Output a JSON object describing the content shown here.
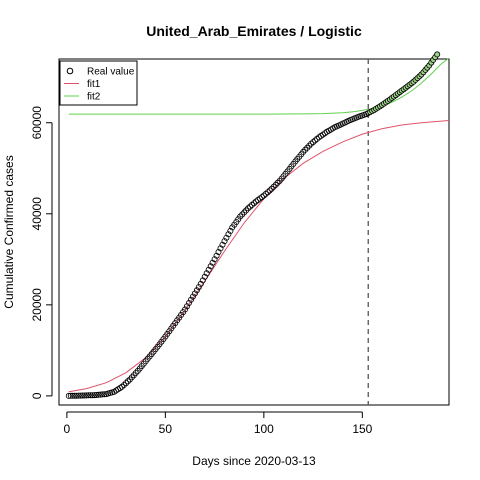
{
  "chart_data": {
    "type": "scatter",
    "title": "United_Arab_Emirates / Logistic",
    "xlabel": "Days since 2020-03-13",
    "ylabel": "Cumulative Confirmed cases",
    "xlim": [
      -4,
      194
    ],
    "ylim": [
      -2000,
      74000
    ],
    "x_ticks": [
      0,
      50,
      100,
      150
    ],
    "y_ticks": [
      0,
      20000,
      40000,
      60000
    ],
    "vertical_line": {
      "x": 153,
      "style": "dashed",
      "color": "#555555"
    },
    "legend": {
      "position": "top-left",
      "entries": [
        {
          "label": "Real value",
          "symbol": "circle",
          "color": "#000000"
        },
        {
          "label": "fit1",
          "symbol": "line",
          "color": "#DF536B"
        },
        {
          "label": "fit2",
          "symbol": "line",
          "color": "#61D04F"
        }
      ]
    },
    "series": [
      {
        "name": "Real value",
        "kind": "points",
        "color": "#000000",
        "fill_after_x": 153,
        "fill_color": "#9ed28a",
        "x": [
          1,
          5,
          10,
          15,
          20,
          24,
          28,
          32,
          36,
          40,
          44,
          48,
          52,
          56,
          60,
          64,
          68,
          72,
          76,
          80,
          84,
          88,
          92,
          96,
          100,
          104,
          108,
          112,
          116,
          120,
          124,
          128,
          132,
          136,
          140,
          144,
          148,
          152,
          156,
          160,
          164,
          168,
          172,
          176,
          180,
          184,
          188
        ],
        "y": [
          0,
          50,
          100,
          200,
          400,
          900,
          2000,
          3600,
          5500,
          7600,
          9700,
          11900,
          14200,
          16600,
          19000,
          21800,
          24600,
          27700,
          30800,
          34000,
          37000,
          39400,
          41200,
          42700,
          44000,
          45500,
          47200,
          49300,
          51500,
          53600,
          55400,
          56800,
          58000,
          59000,
          59800,
          60600,
          61300,
          61900,
          62800,
          63900,
          65100,
          66400,
          67700,
          69000,
          70600,
          72600,
          75000
        ]
      },
      {
        "name": "fit1",
        "kind": "line",
        "color": "#DF536B",
        "x": [
          1,
          10,
          20,
          30,
          40,
          50,
          60,
          70,
          80,
          90,
          100,
          110,
          120,
          130,
          140,
          150,
          160,
          170,
          180,
          194
        ],
        "y": [
          900,
          1600,
          2900,
          5100,
          8400,
          13000,
          18800,
          25200,
          31800,
          38000,
          43300,
          47700,
          51100,
          53700,
          55800,
          57500,
          58700,
          59500,
          60000,
          60500
        ]
      },
      {
        "name": "fit2",
        "kind": "line",
        "color": "#61D04F",
        "x": [
          1,
          20,
          40,
          60,
          80,
          100,
          120,
          130,
          140,
          146,
          150,
          155,
          160,
          165,
          170,
          175,
          180,
          185,
          190,
          194
        ],
        "y": [
          61900,
          61900,
          61900,
          61900,
          61900,
          61900,
          61950,
          62000,
          62200,
          62450,
          62700,
          63100,
          63700,
          64500,
          65600,
          67000,
          68700,
          70700,
          72900,
          74200
        ]
      }
    ]
  }
}
